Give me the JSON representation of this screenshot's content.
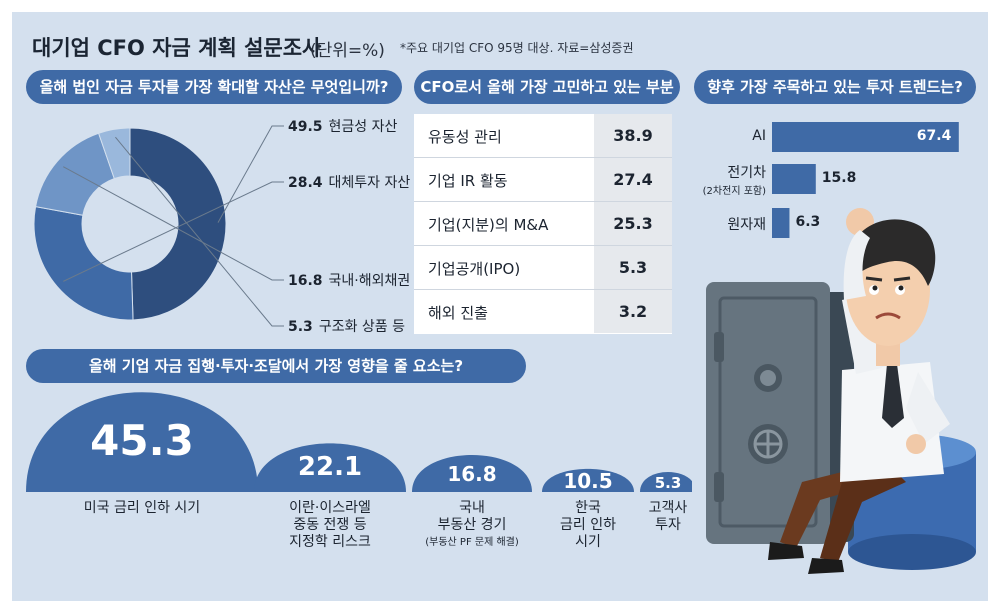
{
  "header": {
    "title": "대기업 CFO 자금 계획 설문조사",
    "unit": "(단위=%)",
    "note": "*주요 대기업 CFO 95명 대상. 자료=삼성증권"
  },
  "colors": {
    "accent": "#3f6aa6",
    "background": "#d4e0ee",
    "donut": [
      "#2e4e7e",
      "#3f6aa6",
      "#6f95c6",
      "#9ab8dc"
    ]
  },
  "chart_data": [
    {
      "type": "pie",
      "title": "올해 법인 자금 투자를 가장 확대할 자산은 무엇입니까?",
      "categories": [
        "현금성 자산",
        "대체투자 자산",
        "국내·해외채권",
        "구조화 상품 등"
      ],
      "values": [
        49.5,
        28.4,
        16.8,
        5.3
      ],
      "labels": [
        "49.5",
        "28.4",
        "16.8",
        "5.3"
      ]
    },
    {
      "type": "table",
      "title": "CFO로서 올해 가장 고민하고 있는 부분",
      "rows": [
        "유동성 관리",
        "기업 IR 활동",
        "기업(지분)의 M&A",
        "기업공개(IPO)",
        "해외 진출"
      ],
      "values": [
        38.9,
        27.4,
        25.3,
        5.3,
        3.2
      ],
      "labels": [
        "38.9",
        "27.4",
        "25.3",
        "5.3",
        "3.2"
      ]
    },
    {
      "type": "bar",
      "title": "향후 가장 주목하고 있는 투자 트렌드는?",
      "categories": [
        "AI",
        "전기차",
        "원자재"
      ],
      "subcategories": [
        "",
        "(2차전지 포함)",
        ""
      ],
      "values": [
        67.4,
        15.8,
        6.3
      ],
      "labels": [
        "67.4",
        "15.8",
        "6.3"
      ]
    },
    {
      "type": "bar",
      "title": "올해 기업 자금 집행·투자·조달에서 가장 영향을 줄 요소는?",
      "categories": [
        [
          "미국 금리 인하 시기"
        ],
        [
          "이란·이스라엘",
          "중동 전쟁 등",
          "지정학 리스크"
        ],
        [
          "국내",
          "부동산 경기"
        ],
        [
          "한국",
          "금리 인하",
          "시기"
        ],
        [
          "고객사",
          "투자"
        ]
      ],
      "subcategories": [
        "",
        "",
        "(부동산 PF 문제 해결)",
        "",
        ""
      ],
      "values": [
        45.3,
        22.1,
        16.8,
        10.5,
        5.3
      ],
      "labels": [
        "45.3",
        "22.1",
        "16.8",
        "10.5",
        "5.3"
      ]
    }
  ]
}
